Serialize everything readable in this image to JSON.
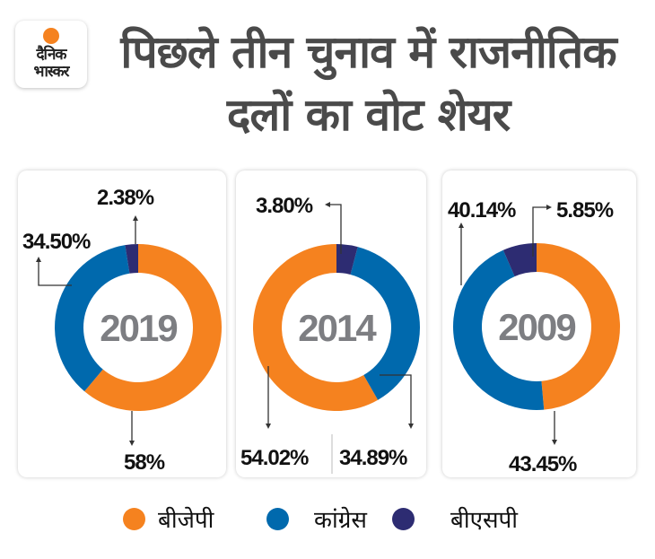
{
  "logo": {
    "line1": "दैनिक",
    "line2": "भास्कर",
    "sun_color": "#f5821f"
  },
  "title": {
    "line1": "पिछले तीन चुनाव में राजनीतिक",
    "line2": "दलों का वोट शेयर"
  },
  "colors": {
    "bjp": "#f5821f",
    "congress": "#0069ad",
    "bsp": "#2d2c72"
  },
  "legend": [
    {
      "key": "bjp",
      "label": "बीजेपी"
    },
    {
      "key": "congress",
      "label": "कांग्रेस"
    },
    {
      "key": "bsp",
      "label": "बीएसपी"
    }
  ],
  "chart_data": [
    {
      "type": "pie",
      "title": "2019",
      "categories": [
        "बीजेपी",
        "कांग्रेस",
        "बीएसपी"
      ],
      "values": [
        58,
        34.5,
        2.38
      ],
      "labels": [
        "58%",
        "34.50%",
        "2.38%"
      ]
    },
    {
      "type": "pie",
      "title": "2014",
      "categories": [
        "बीजेपी",
        "कांग्रेस",
        "बीएसपी"
      ],
      "values": [
        54.02,
        34.89,
        3.8
      ],
      "labels": [
        "54.02%",
        "34.89%",
        "3.80%"
      ]
    },
    {
      "type": "pie",
      "title": "2009",
      "categories": [
        "बीजेपी",
        "कांग्रेस",
        "बीएसपी"
      ],
      "values": [
        43.45,
        40.14,
        5.85
      ],
      "labels": [
        "43.45%",
        "40.14%",
        "5.85%"
      ]
    }
  ]
}
